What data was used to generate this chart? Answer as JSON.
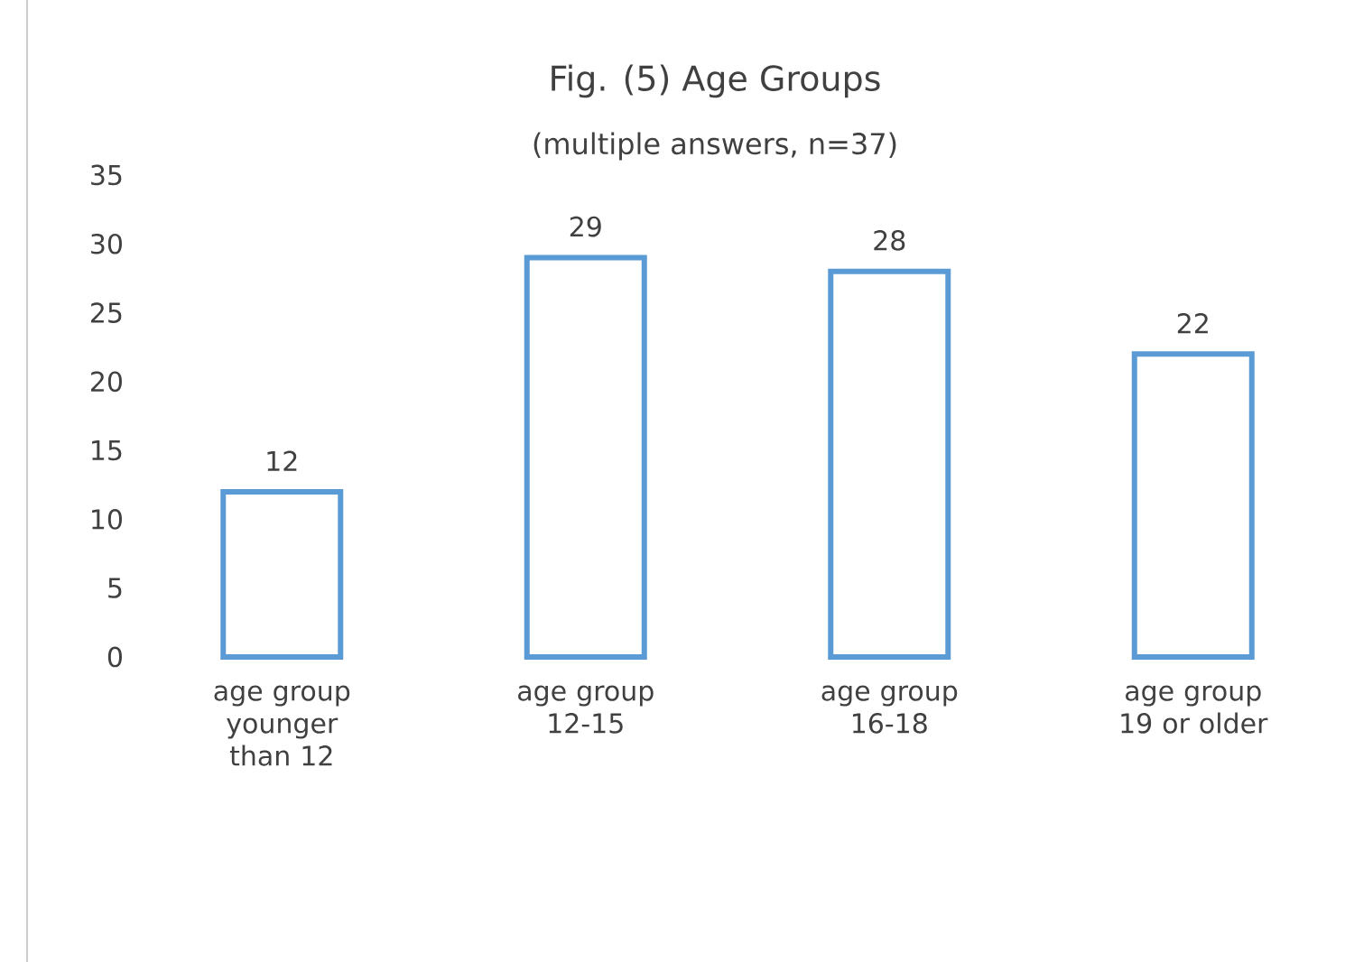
{
  "chart_data": {
    "type": "bar",
    "title": "Fig. (5) Age Groups",
    "subtitle": "(multiple answers, n=37)",
    "categories": [
      "age group younger than 12",
      "age group 12-15",
      "age group 16-18",
      "age group 19 or older"
    ],
    "values": [
      12,
      29,
      28,
      22
    ],
    "color": "#5b9bd5",
    "ylim": [
      0,
      35
    ],
    "yticks": [
      0,
      5,
      10,
      15,
      20,
      25,
      30,
      35
    ],
    "data_labels": true
  }
}
